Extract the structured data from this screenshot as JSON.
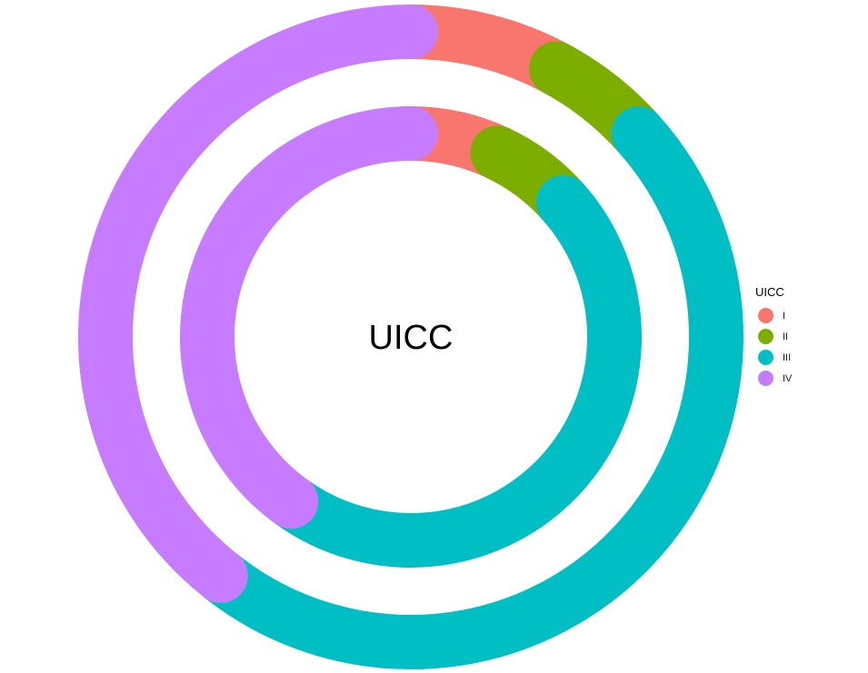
{
  "chart_data": {
    "type": "donut",
    "center_label": "UICC",
    "legend_title": "UICC",
    "categories": [
      "I",
      "II",
      "III",
      "IV"
    ],
    "colors": {
      "I": "#F8766D",
      "II": "#7CAE00",
      "III": "#00BFC4",
      "IV": "#C77CFF"
    },
    "series": [
      {
        "ring": "outer",
        "values": [
          0.079,
          0.055,
          0.473,
          0.393
        ]
      },
      {
        "ring": "inner",
        "values": [
          0.07,
          0.065,
          0.465,
          0.4
        ]
      }
    ],
    "legend_position": "right"
  }
}
